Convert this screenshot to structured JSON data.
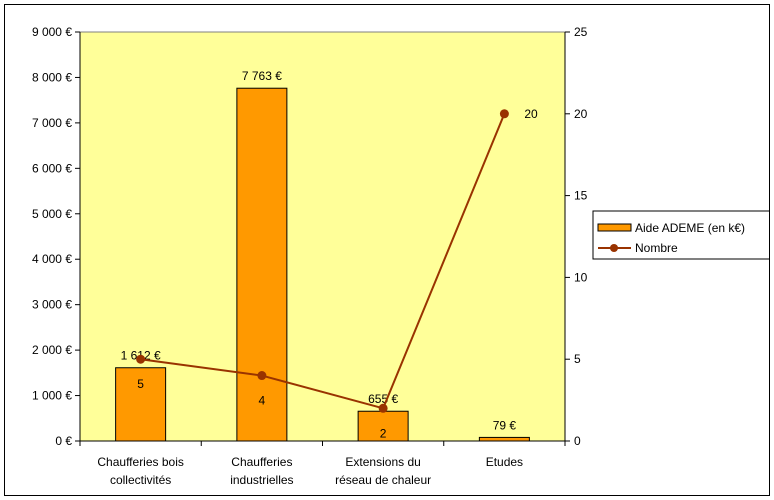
{
  "chart_data": {
    "type": "bar",
    "categories": [
      [
        "Chaufferies bois",
        "collectivités"
      ],
      [
        "Chaufferies",
        "industrielles"
      ],
      [
        "Extensions du",
        "réseau de chaleur"
      ],
      [
        "Etudes"
      ]
    ],
    "series": [
      {
        "name": "Aide ADEME (en k€)",
        "type": "bar",
        "axis": "left",
        "values": [
          1612,
          7763,
          655,
          79
        ],
        "labels": [
          "1 612 €",
          "7 763 €",
          "655 €",
          "79 €"
        ],
        "color": "#ff9900"
      },
      {
        "name": "Nombre",
        "type": "line",
        "axis": "right",
        "values": [
          5,
          4,
          2,
          20
        ],
        "labels": [
          "5",
          "4",
          "2",
          "20"
        ],
        "color": "#993300"
      }
    ],
    "ylim_left": [
      0,
      9000
    ],
    "ylim_right": [
      0,
      25
    ],
    "yticks_left": [
      {
        "value": 0,
        "label": "0 €"
      },
      {
        "value": 1000,
        "label": "1 000 €"
      },
      {
        "value": 2000,
        "label": "2 000 €"
      },
      {
        "value": 3000,
        "label": "3 000 €"
      },
      {
        "value": 4000,
        "label": "4 000 €"
      },
      {
        "value": 5000,
        "label": "5 000 €"
      },
      {
        "value": 6000,
        "label": "6 000 €"
      },
      {
        "value": 7000,
        "label": "7 000 €"
      },
      {
        "value": 8000,
        "label": "8 000 €"
      },
      {
        "value": 9000,
        "label": "9 000 €"
      }
    ],
    "yticks_right": [
      {
        "value": 0,
        "label": "0"
      },
      {
        "value": 5,
        "label": "5"
      },
      {
        "value": 10,
        "label": "10"
      },
      {
        "value": 15,
        "label": "15"
      },
      {
        "value": 20,
        "label": "20"
      },
      {
        "value": 25,
        "label": "25"
      }
    ],
    "plot_background": "#ffff99",
    "grid": false,
    "legend_position": "right"
  }
}
